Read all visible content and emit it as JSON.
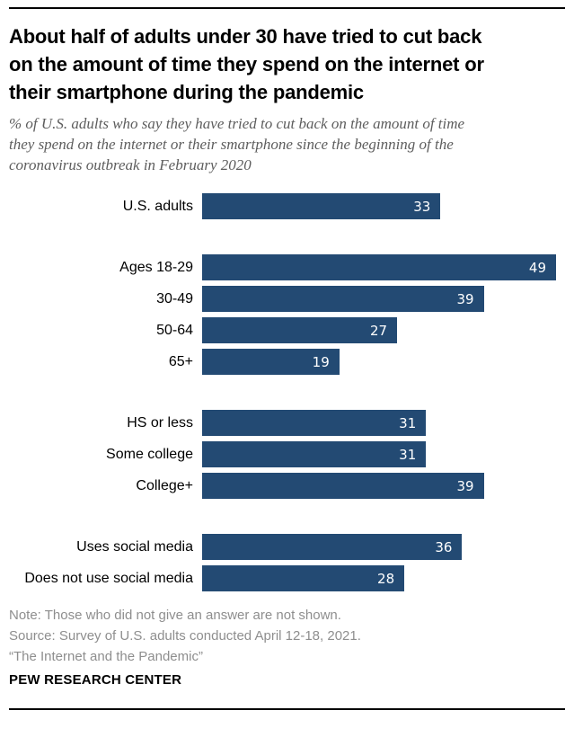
{
  "header": {
    "title": "About half of adults under 30 have tried to cut back\non the amount of time they spend on the internet or\ntheir smartphone during the pandemic",
    "subtitle": "% of U.S. adults who say they have tried to cut back on the amount of time\nthey spend on the internet or their smartphone since the beginning of the\ncoronavirus outbreak in February 2020"
  },
  "chart_data": {
    "type": "bar",
    "orientation": "horizontal",
    "unit": "%",
    "value_axis_max": 49,
    "grid": false,
    "legend": false,
    "value_labels_position": "inside-end",
    "bar_color": "#234a73",
    "value_label_color": "#ffffff",
    "groups": [
      {
        "name": "overall",
        "rows": [
          {
            "label": "U.S. adults",
            "value": 33
          }
        ]
      },
      {
        "name": "age",
        "rows": [
          {
            "label": "Ages 18-29",
            "value": 49
          },
          {
            "label": "30-49",
            "value": 39
          },
          {
            "label": "50-64",
            "value": 27
          },
          {
            "label": "65+",
            "value": 19
          }
        ]
      },
      {
        "name": "education",
        "rows": [
          {
            "label": "HS or less",
            "value": 31
          },
          {
            "label": "Some college",
            "value": 31
          },
          {
            "label": "College+",
            "value": 39
          }
        ]
      },
      {
        "name": "social-media",
        "rows": [
          {
            "label": "Uses social media",
            "value": 36
          },
          {
            "label": "Does not use social media",
            "value": 28
          }
        ]
      }
    ]
  },
  "footer": {
    "note": "Note: Those who did not give an answer are not shown.",
    "source": "Source: Survey of U.S. adults conducted April 12-18, 2021.",
    "citation": "“The Internet and the Pandemic”",
    "brand": "PEW RESEARCH CENTER"
  }
}
